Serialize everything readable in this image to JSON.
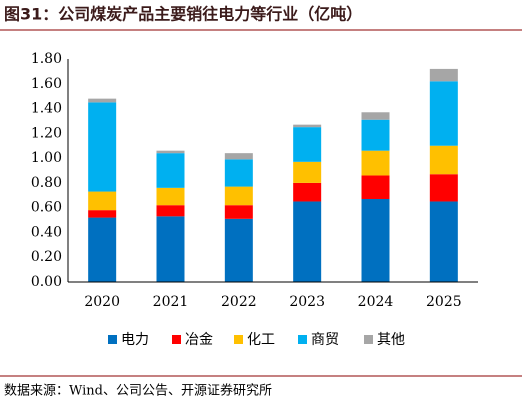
{
  "chart_data": {
    "type": "stacked_bar",
    "title": "图31：公司煤炭产品主要销往电力等行业（亿吨）",
    "source": "数据来源：Wind、公司公告、开源证券研究所",
    "categories": [
      "2020",
      "2021",
      "2022",
      "2023",
      "2024",
      "2025"
    ],
    "series": [
      {
        "name": "电力",
        "color": "#0070c0",
        "values": [
          0.52,
          0.53,
          0.51,
          0.65,
          0.67,
          0.65
        ]
      },
      {
        "name": "冶金",
        "color": "#ff0000",
        "values": [
          0.06,
          0.09,
          0.11,
          0.15,
          0.19,
          0.22
        ]
      },
      {
        "name": "化工",
        "color": "#ffc000",
        "values": [
          0.15,
          0.14,
          0.15,
          0.17,
          0.2,
          0.23
        ]
      },
      {
        "name": "商贸",
        "color": "#00b0f0",
        "values": [
          0.72,
          0.28,
          0.22,
          0.28,
          0.25,
          0.52
        ]
      },
      {
        "name": "其他",
        "color": "#a6a6a6",
        "values": [
          0.03,
          0.02,
          0.05,
          0.02,
          0.06,
          0.1
        ]
      }
    ],
    "ylim": [
      0,
      1.8
    ],
    "yticks": [
      {
        "value": 0,
        "label": "0.00"
      },
      {
        "value": 0.2,
        "label": "0.20"
      },
      {
        "value": 0.4,
        "label": "0.40"
      },
      {
        "value": 0.6,
        "label": "0.60"
      },
      {
        "value": 0.8,
        "label": "0.80"
      },
      {
        "value": 1.0,
        "label": "1.00"
      },
      {
        "value": 1.2,
        "label": "1.20"
      },
      {
        "value": 1.4,
        "label": "1.40"
      },
      {
        "value": 1.6,
        "label": "1.60"
      },
      {
        "value": 1.8,
        "label": "1.80"
      }
    ],
    "grid": false
  }
}
